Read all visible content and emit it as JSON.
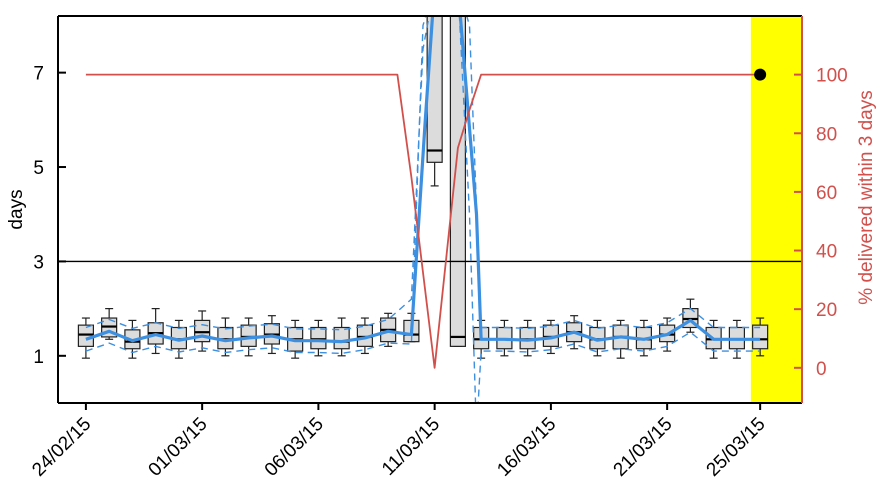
{
  "chart_data": {
    "type": "box",
    "xlabel": "",
    "ylabel": "days",
    "y2label": "% delivered within 3 days",
    "ylim": [
      0,
      8.2
    ],
    "y2lim": [
      -12,
      120
    ],
    "yticks": [
      1,
      3,
      5,
      7
    ],
    "y2ticks": [
      0,
      20,
      40,
      60,
      80,
      100
    ],
    "reference_line_y": 3,
    "xlim_days": [
      -1.2,
      30.8
    ],
    "x_ticks": [
      {
        "label": "24/02/15",
        "day": 0
      },
      {
        "label": "01/03/15",
        "day": 5
      },
      {
        "label": "06/03/15",
        "day": 10
      },
      {
        "label": "11/03/15",
        "day": 15
      },
      {
        "label": "16/03/15",
        "day": 20
      },
      {
        "label": "21/03/15",
        "day": 25
      },
      {
        "label": "25/03/15",
        "day": 29
      }
    ],
    "highlight": {
      "day_start": 28.6,
      "day_end": 30.8,
      "color": "#ffff00"
    },
    "boxes": [
      {
        "day": 0,
        "whisker_low": 0.95,
        "q1": 1.2,
        "median": 1.45,
        "q3": 1.65,
        "whisker_high": 1.8
      },
      {
        "day": 1,
        "whisker_low": 1.35,
        "q1": 1.4,
        "median": 1.62,
        "q3": 1.8,
        "whisker_high": 2.0
      },
      {
        "day": 2,
        "whisker_low": 0.95,
        "q1": 1.15,
        "median": 1.3,
        "q3": 1.55,
        "whisker_high": 1.75
      },
      {
        "day": 3,
        "whisker_low": 1.05,
        "q1": 1.25,
        "median": 1.48,
        "q3": 1.7,
        "whisker_high": 2.0
      },
      {
        "day": 4,
        "whisker_low": 0.95,
        "q1": 1.15,
        "median": 1.35,
        "q3": 1.6,
        "whisker_high": 1.75
      },
      {
        "day": 5,
        "whisker_low": 1.1,
        "q1": 1.3,
        "median": 1.5,
        "q3": 1.75,
        "whisker_high": 1.95
      },
      {
        "day": 6,
        "whisker_low": 1.0,
        "q1": 1.15,
        "median": 1.35,
        "q3": 1.6,
        "whisker_high": 1.8
      },
      {
        "day": 7,
        "whisker_low": 1.0,
        "q1": 1.2,
        "median": 1.4,
        "q3": 1.65,
        "whisker_high": 1.8
      },
      {
        "day": 8,
        "whisker_low": 1.05,
        "q1": 1.25,
        "median": 1.45,
        "q3": 1.68,
        "whisker_high": 1.85
      },
      {
        "day": 9,
        "whisker_low": 0.95,
        "q1": 1.1,
        "median": 1.35,
        "q3": 1.6,
        "whisker_high": 1.75
      },
      {
        "day": 10,
        "whisker_low": 1.0,
        "q1": 1.15,
        "median": 1.35,
        "q3": 1.6,
        "whisker_high": 1.75
      },
      {
        "day": 11,
        "whisker_low": 1.0,
        "q1": 1.15,
        "median": 1.3,
        "q3": 1.6,
        "whisker_high": 1.8
      },
      {
        "day": 12,
        "whisker_low": 1.05,
        "q1": 1.2,
        "median": 1.4,
        "q3": 1.65,
        "whisker_high": 1.8
      },
      {
        "day": 13,
        "whisker_low": 1.2,
        "q1": 1.3,
        "median": 1.55,
        "q3": 1.8,
        "whisker_high": 1.9
      },
      {
        "day": 14,
        "whisker_low": 1.3,
        "q1": 1.3,
        "median": 1.45,
        "q3": 1.75,
        "whisker_high": 1.9
      },
      {
        "day": 15,
        "whisker_low": 4.6,
        "q1": 5.1,
        "median": 5.35,
        "q3": 9.0,
        "whisker_high": 9.0
      },
      {
        "day": 16,
        "whisker_low": 1.2,
        "q1": 1.2,
        "median": 1.4,
        "q3": 9.0,
        "whisker_high": 9.0
      },
      {
        "day": 17,
        "whisker_low": 0.95,
        "q1": 1.15,
        "median": 1.35,
        "q3": 1.6,
        "whisker_high": 1.75
      },
      {
        "day": 18,
        "whisker_low": 1.0,
        "q1": 1.15,
        "median": 1.35,
        "q3": 1.6,
        "whisker_high": 1.75
      },
      {
        "day": 19,
        "whisker_low": 1.0,
        "q1": 1.15,
        "median": 1.35,
        "q3": 1.6,
        "whisker_high": 1.75
      },
      {
        "day": 20,
        "whisker_low": 1.05,
        "q1": 1.2,
        "median": 1.4,
        "q3": 1.65,
        "whisker_high": 1.75
      },
      {
        "day": 21,
        "whisker_low": 1.15,
        "q1": 1.3,
        "median": 1.5,
        "q3": 1.7,
        "whisker_high": 1.85
      },
      {
        "day": 22,
        "whisker_low": 1.0,
        "q1": 1.15,
        "median": 1.35,
        "q3": 1.6,
        "whisker_high": 1.75
      },
      {
        "day": 23,
        "whisker_low": 0.95,
        "q1": 1.15,
        "median": 1.4,
        "q3": 1.65,
        "whisker_high": 1.75
      },
      {
        "day": 24,
        "whisker_low": 1.0,
        "q1": 1.15,
        "median": 1.35,
        "q3": 1.6,
        "whisker_high": 1.75
      },
      {
        "day": 25,
        "whisker_low": 1.1,
        "q1": 1.3,
        "median": 1.45,
        "q3": 1.65,
        "whisker_high": 1.8
      },
      {
        "day": 26,
        "whisker_low": 1.5,
        "q1": 1.6,
        "median": 1.78,
        "q3": 2.0,
        "whisker_high": 2.2
      },
      {
        "day": 27,
        "whisker_low": 0.95,
        "q1": 1.15,
        "median": 1.35,
        "q3": 1.6,
        "whisker_high": 1.75
      },
      {
        "day": 28,
        "whisker_low": 0.95,
        "q1": 1.15,
        "median": 1.35,
        "q3": 1.6,
        "whisker_high": 1.75
      },
      {
        "day": 29,
        "whisker_low": 1.0,
        "q1": 1.15,
        "median": 1.35,
        "q3": 1.65,
        "whisker_high": 1.8
      }
    ],
    "series": [
      {
        "name": "",
        "color": "#3d8fe0",
        "style": "solid",
        "axis": "left",
        "x": [
          0,
          1,
          2,
          3,
          4,
          5,
          6,
          7,
          8,
          9,
          10,
          11,
          12,
          13,
          14,
          14.6,
          15,
          15.5,
          16,
          16.8,
          17,
          18,
          19,
          20,
          21,
          22,
          23,
          24,
          25,
          26,
          27,
          28,
          29
        ],
        "y": [
          1.35,
          1.52,
          1.32,
          1.45,
          1.33,
          1.42,
          1.32,
          1.38,
          1.42,
          1.32,
          1.32,
          1.3,
          1.38,
          1.52,
          1.45,
          6.0,
          9.0,
          9.0,
          9.0,
          4.0,
          1.35,
          1.35,
          1.33,
          1.38,
          1.5,
          1.33,
          1.4,
          1.35,
          1.45,
          1.75,
          1.35,
          1.35,
          1.35
        ]
      },
      {
        "name": "",
        "color": "#3d8fe0",
        "style": "dashed",
        "axis": "left",
        "x": [
          0,
          1,
          2,
          3,
          4,
          5,
          6,
          7,
          8,
          9,
          10,
          11,
          12,
          13,
          14,
          14.5,
          15,
          15.5,
          16,
          16.5,
          17,
          18,
          19,
          20,
          21,
          22,
          23,
          24,
          25,
          26,
          27,
          28,
          29
        ],
        "y": [
          1.6,
          1.77,
          1.58,
          1.7,
          1.58,
          1.66,
          1.57,
          1.63,
          1.67,
          1.57,
          1.57,
          1.55,
          1.63,
          1.77,
          2.2,
          7.5,
          9.0,
          9.0,
          9.0,
          8.0,
          1.6,
          1.6,
          1.58,
          1.63,
          1.75,
          1.58,
          1.65,
          1.6,
          1.7,
          2.0,
          1.6,
          1.6,
          1.6
        ]
      },
      {
        "name": "",
        "color": "#3d8fe0",
        "style": "dashed",
        "axis": "left",
        "x": [
          0,
          1,
          2,
          3,
          4,
          5,
          6,
          7,
          8,
          9,
          10,
          11,
          12,
          13,
          14,
          14.5,
          15,
          16,
          16.5,
          16.8,
          17,
          18,
          19,
          20,
          21,
          22,
          23,
          24,
          25,
          26,
          27,
          28,
          29
        ],
        "y": [
          1.1,
          1.27,
          1.07,
          1.2,
          1.08,
          1.17,
          1.07,
          1.13,
          1.17,
          1.07,
          1.07,
          1.05,
          1.13,
          1.27,
          1.25,
          8.0,
          9.0,
          9.0,
          4.0,
          -1.0,
          1.1,
          1.1,
          1.08,
          1.13,
          1.25,
          1.08,
          1.15,
          1.1,
          1.2,
          1.5,
          1.1,
          1.1,
          1.1
        ]
      },
      {
        "name": "",
        "color": "#d1504c",
        "style": "solid",
        "axis": "right",
        "x": [
          0,
          1,
          2,
          3,
          4,
          5,
          6,
          7,
          8,
          9,
          10,
          11,
          12,
          13,
          13.4,
          14,
          15,
          16,
          16.5,
          17,
          18,
          19,
          20,
          21,
          22,
          23,
          24,
          25,
          26,
          27,
          28,
          29
        ],
        "y": [
          100,
          100,
          100,
          100,
          100,
          100,
          100,
          100,
          100,
          100,
          100,
          100,
          100,
          100,
          100,
          65,
          0,
          75,
          88,
          100,
          100,
          100,
          100,
          100,
          100,
          100,
          100,
          100,
          100,
          100,
          100,
          100
        ]
      }
    ],
    "point": {
      "day": 29,
      "y2": 100,
      "color": "#000000"
    }
  }
}
